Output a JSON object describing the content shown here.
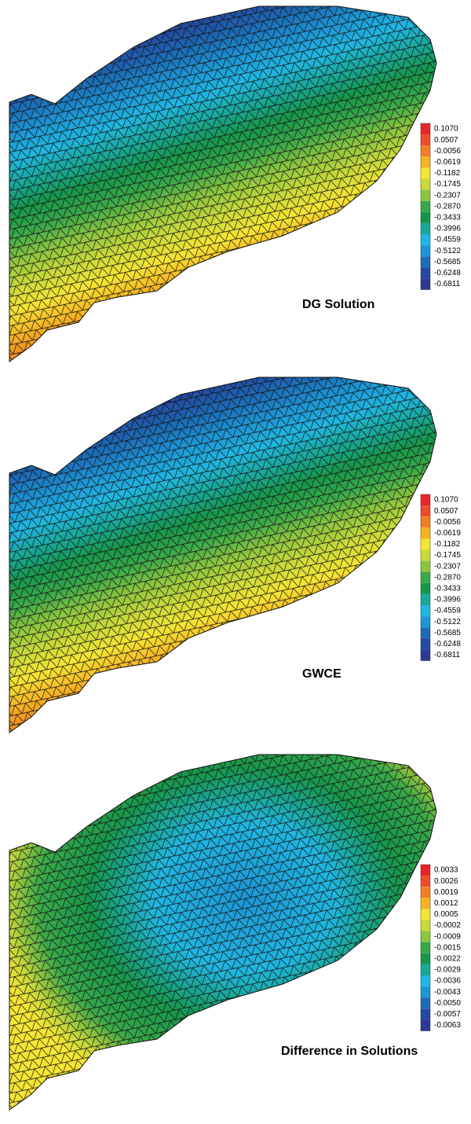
{
  "panels": [
    {
      "title": "DG Solution",
      "style": "linear",
      "colorbar": {
        "labels": [
          "0.1070",
          "0.0507",
          "-0.0056",
          "-0.0619",
          "-0.1182",
          "-0.1745",
          "-0.2307",
          "-0.2870",
          "-0.3433",
          "-0.3996",
          "-0.4559",
          "-0.5122",
          "-0.5685",
          "-0.6248",
          "-0.6811"
        ]
      }
    },
    {
      "title": "GWCE",
      "style": "linear",
      "colorbar": {
        "labels": [
          "0.1070",
          "0.0507",
          "-0.0056",
          "-0.0619",
          "-0.1182",
          "-0.1745",
          "-0.2307",
          "-0.2870",
          "-0.3433",
          "-0.3996",
          "-0.4559",
          "-0.5122",
          "-0.5685",
          "-0.6248",
          "-0.6811"
        ]
      }
    },
    {
      "title": "Difference in Solutions",
      "style": "radial",
      "colorbar": {
        "labels": [
          "0.0033",
          "0.0026",
          "0.0019",
          "0.0012",
          "0.0005",
          "-0.0002",
          "-0.0009",
          "-0.0015",
          "-0.0022",
          "-0.0029",
          "-0.0036",
          "-0.0043",
          "-0.0050",
          "-0.0057",
          "-0.0063"
        ]
      }
    }
  ],
  "colors": [
    "#e8262a",
    "#ee4b2b",
    "#f07f25",
    "#f5b223",
    "#f5e534",
    "#c9d93a",
    "#8cc540",
    "#3aa849",
    "#17964b",
    "#1aa89b",
    "#20b6e0",
    "#1e96d4",
    "#1c6db6",
    "#234aa0",
    "#2b3990"
  ]
}
